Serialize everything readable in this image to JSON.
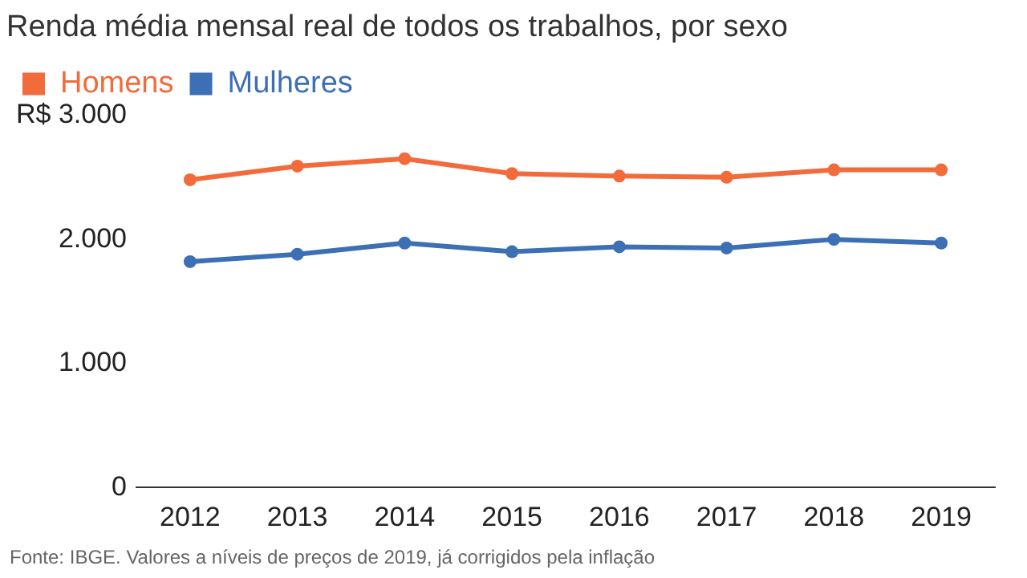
{
  "chart_data": {
    "type": "line",
    "title": "Renda média mensal real de todos os trabalhos, por sexo",
    "categories": [
      "2012",
      "2013",
      "2014",
      "2015",
      "2016",
      "2017",
      "2018",
      "2019"
    ],
    "series": [
      {
        "name": "Homens",
        "color": "#f26b3a",
        "values": [
          2480,
          2590,
          2650,
          2530,
          2510,
          2500,
          2560,
          2560
        ]
      },
      {
        "name": "Mulheres",
        "color": "#3d6fb5",
        "values": [
          1820,
          1880,
          1970,
          1900,
          1940,
          1930,
          2000,
          1970
        ]
      }
    ],
    "ylim": [
      0,
      3000
    ],
    "yticks": [
      0,
      {
        "value": 1000,
        "label": "1.000"
      },
      {
        "value": 2000,
        "label": "2.000"
      },
      {
        "value": 3000,
        "label": "R$ 3.000"
      }
    ],
    "grid": false,
    "legend": "top left",
    "marker": "circle",
    "line_style": "solid",
    "annotations": [
      "Fonte: IBGE. Valores a níveis de preços de 2019, já corrigidos pela inflação"
    ]
  }
}
